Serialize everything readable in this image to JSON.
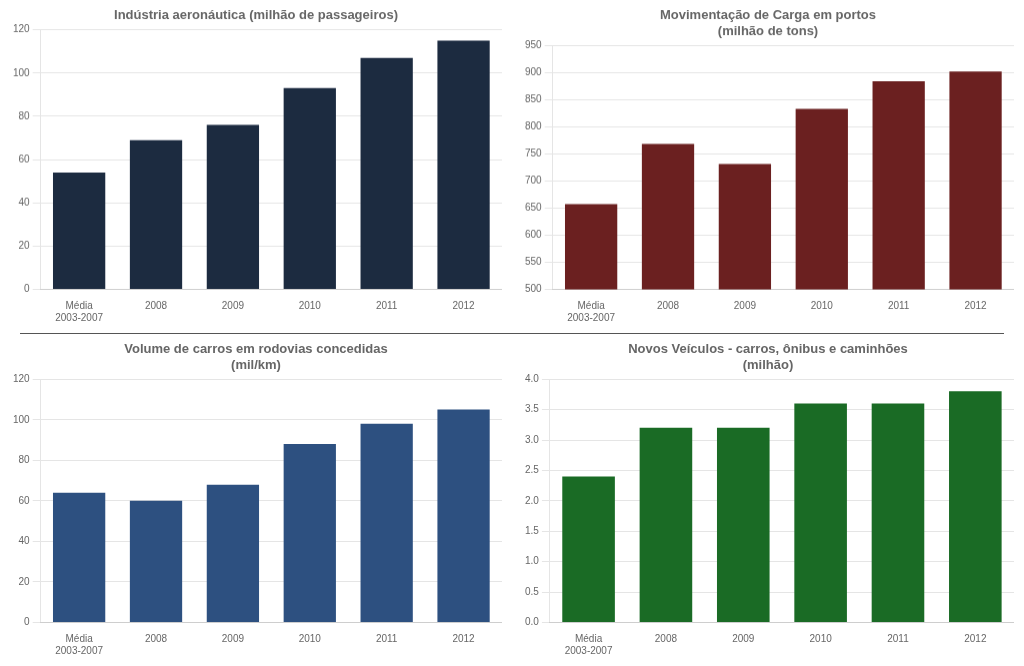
{
  "chart_data": [
    {
      "type": "bar",
      "title": "Indústria aeronáutica (milhão de passageiros)",
      "categories": [
        "Média\n2003-2007",
        "2008",
        "2009",
        "2010",
        "2011",
        "2012"
      ],
      "values": [
        54,
        69,
        76,
        93,
        107,
        115
      ],
      "color": "#1c2b40",
      "ylim": [
        0,
        120
      ],
      "yticks": [
        0,
        20,
        40,
        60,
        80,
        100,
        120
      ],
      "grid": true
    },
    {
      "type": "bar",
      "title": "Movimentação de Carga em portos\n(milhão de tons)",
      "categories": [
        "Média\n2003-2007",
        "2008",
        "2009",
        "2010",
        "2011",
        "2012"
      ],
      "values": [
        657,
        768,
        731,
        833,
        884,
        902
      ],
      "color": "#6b2020",
      "ylim": [
        500,
        950
      ],
      "yticks": [
        500,
        550,
        600,
        650,
        700,
        750,
        800,
        850,
        900,
        950
      ],
      "grid": true
    },
    {
      "type": "bar",
      "title": "Volume de carros em rodovias concedidas\n(mil/km)",
      "categories": [
        "Média\n2003-2007",
        "2008",
        "2009",
        "2010",
        "2011",
        "2012"
      ],
      "values": [
        64,
        60,
        68,
        88,
        98,
        105
      ],
      "color": "#2d5080",
      "ylim": [
        0,
        120
      ],
      "yticks": [
        0,
        20,
        40,
        60,
        80,
        100,
        120
      ],
      "grid": true
    },
    {
      "type": "bar",
      "title": "Novos Veículos - carros, ônibus e caminhões\n(milhão)",
      "categories": [
        "Média\n2003-2007",
        "2008",
        "2009",
        "2010",
        "2011",
        "2012"
      ],
      "values": [
        2.4,
        3.2,
        3.2,
        3.6,
        3.6,
        3.8
      ],
      "color": "#1a6b25",
      "ylim": [
        0.0,
        4.0
      ],
      "yticks": [
        {
          "value": 0,
          "label": "0.0"
        },
        0.5,
        {
          "value": 1,
          "label": "1.0"
        },
        1.5,
        {
          "value": 2,
          "label": "2.0"
        },
        2.5,
        {
          "value": 3,
          "label": "3.0"
        },
        3.5,
        {
          "value": 4,
          "label": "4.0"
        }
      ],
      "grid": true
    }
  ]
}
